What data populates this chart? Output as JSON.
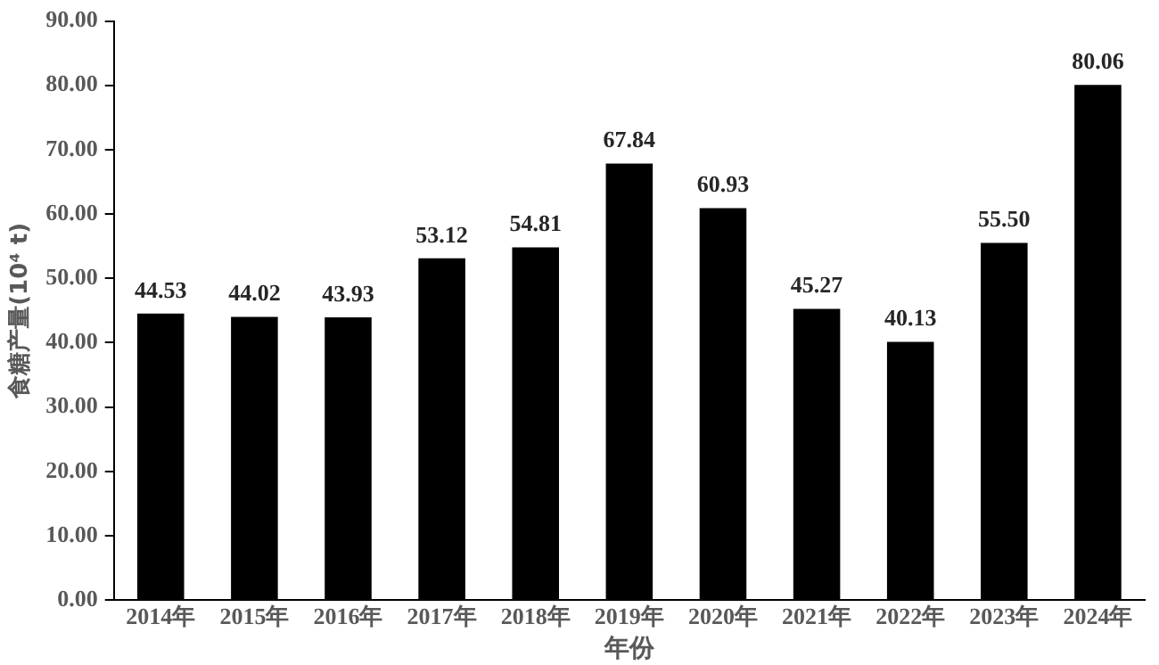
{
  "chart_data": {
    "type": "bar",
    "xlabel": "年份",
    "ylabel": "食糖产量(10⁴ t)",
    "categories": [
      "2014年",
      "2015年",
      "2016年",
      "2017年",
      "2018年",
      "2019年",
      "2020年",
      "2021年",
      "2022年",
      "2023年",
      "2024年"
    ],
    "values": [
      44.53,
      44.02,
      43.93,
      53.12,
      54.81,
      67.84,
      60.93,
      45.27,
      40.13,
      55.5,
      80.06
    ],
    "value_labels": [
      "44.53",
      "44.02",
      "43.93",
      "53.12",
      "54.81",
      "67.84",
      "60.93",
      "45.27",
      "40.13",
      "55.50",
      "80.06"
    ],
    "color": "#000000",
    "ylim": [
      0,
      90
    ],
    "yticks": [
      {
        "value": 0,
        "label": "0.00"
      },
      {
        "value": 10,
        "label": "10.00"
      },
      {
        "value": 20,
        "label": "20.00"
      },
      {
        "value": 30,
        "label": "30.00"
      },
      {
        "value": 40,
        "label": "40.00"
      },
      {
        "value": 50,
        "label": "50.00"
      },
      {
        "value": 60,
        "label": "60.00"
      },
      {
        "value": 70,
        "label": "70.00"
      },
      {
        "value": 80,
        "label": "80.00"
      },
      {
        "value": 90,
        "label": "90.00"
      }
    ],
    "grid": false,
    "legend": false
  }
}
